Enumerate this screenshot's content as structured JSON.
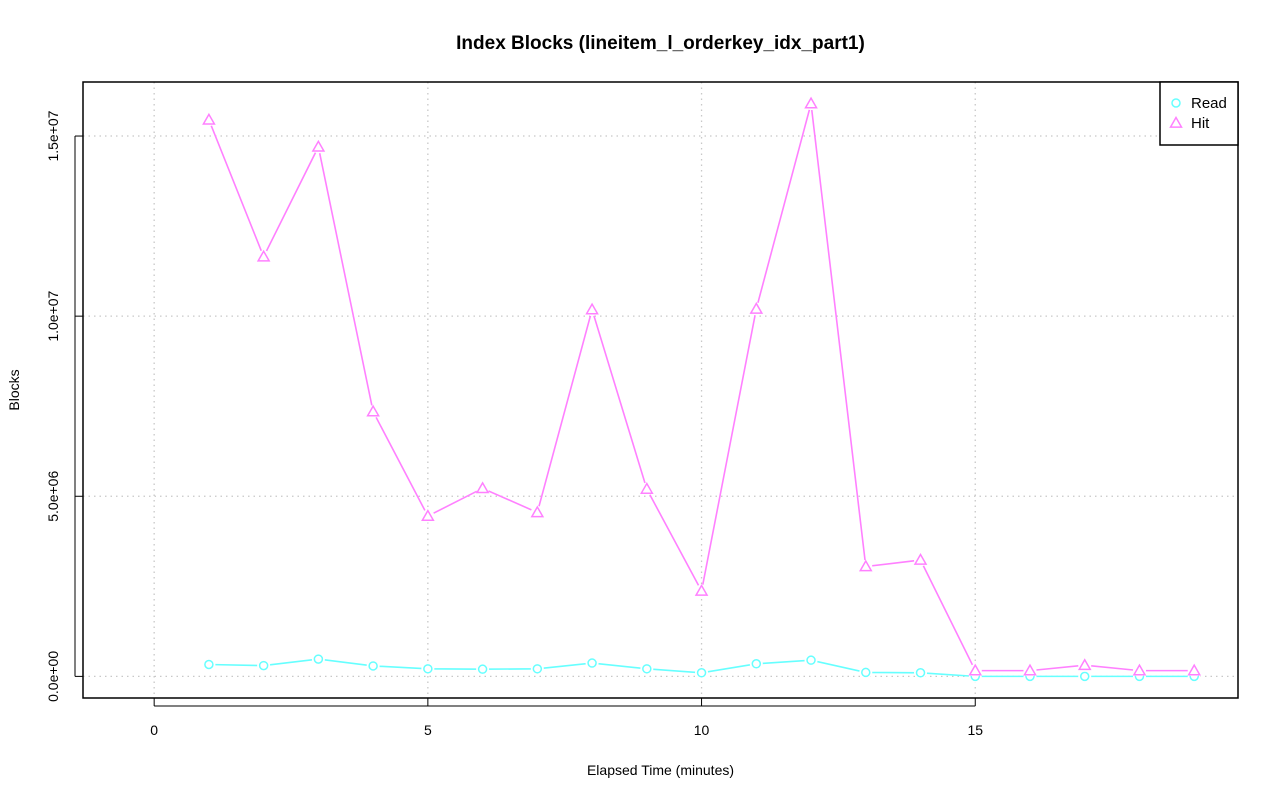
{
  "chart_data": {
    "type": "line",
    "title": "Index Blocks (lineitem_l_orderkey_idx_part1)",
    "xlabel": "Elapsed Time (minutes)",
    "ylabel": "Blocks",
    "xlim": [
      -1.3,
      19.8
    ],
    "ylim": [
      -600000,
      16500000
    ],
    "x_ticks": [
      0,
      5,
      10,
      15
    ],
    "x_tick_labels": [
      "0",
      "5",
      "10",
      "15"
    ],
    "y_ticks": [
      0,
      5000000,
      10000000,
      15000000
    ],
    "y_tick_labels": [
      "0.0e+00",
      "5.0e+06",
      "1.0e+07",
      "1.5e+07"
    ],
    "grid": true,
    "legend_position": "top-right",
    "x": [
      1,
      2,
      3,
      4,
      5,
      6,
      7,
      8,
      9,
      10,
      11,
      12,
      13,
      14,
      15,
      16,
      17,
      18,
      19
    ],
    "series": [
      {
        "name": "Read",
        "color": "#66ffff",
        "marker": "circle",
        "values": [
          330000,
          300000,
          480000,
          290000,
          210000,
          200000,
          210000,
          370000,
          210000,
          100000,
          350000,
          450000,
          110000,
          100000,
          0,
          0,
          0,
          0,
          0
        ]
      },
      {
        "name": "Hit",
        "color": "#ff80ff",
        "marker": "triangle",
        "values": [
          15450000,
          11650000,
          14700000,
          7350000,
          4450000,
          5220000,
          4550000,
          10180000,
          5200000,
          2370000,
          10200000,
          15900000,
          3050000,
          3230000,
          160000,
          160000,
          310000,
          160000,
          160000
        ]
      }
    ]
  }
}
